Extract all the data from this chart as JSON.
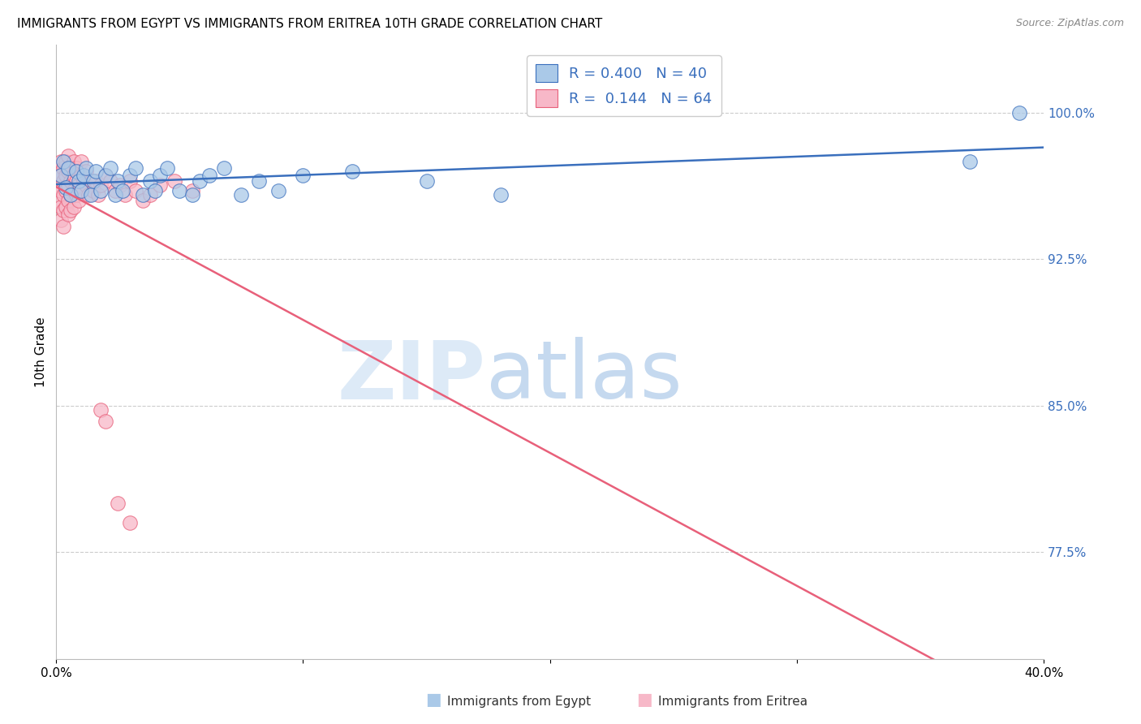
{
  "title": "IMMIGRANTS FROM EGYPT VS IMMIGRANTS FROM ERITREA 10TH GRADE CORRELATION CHART",
  "source": "Source: ZipAtlas.com",
  "ylabel": "10th Grade",
  "yticks": [
    "77.5%",
    "85.0%",
    "92.5%",
    "100.0%"
  ],
  "ytick_values": [
    0.775,
    0.85,
    0.925,
    1.0
  ],
  "xlim": [
    0.0,
    0.4
  ],
  "ylim": [
    0.72,
    1.035
  ],
  "r_egypt": 0.4,
  "n_egypt": 40,
  "r_eritrea": 0.144,
  "n_eritrea": 64,
  "egypt_color": "#aac9e8",
  "eritrea_color": "#f7b8c8",
  "trendline_egypt_color": "#3a6fbd",
  "trendline_eritrea_color": "#e8607a",
  "egypt_scatter_x": [
    0.002,
    0.003,
    0.004,
    0.005,
    0.006,
    0.008,
    0.009,
    0.01,
    0.011,
    0.012,
    0.014,
    0.015,
    0.016,
    0.018,
    0.02,
    0.022,
    0.024,
    0.025,
    0.027,
    0.03,
    0.032,
    0.035,
    0.038,
    0.04,
    0.042,
    0.045,
    0.05,
    0.055,
    0.058,
    0.062,
    0.068,
    0.075,
    0.082,
    0.09,
    0.1,
    0.12,
    0.15,
    0.18,
    0.37,
    0.39
  ],
  "egypt_scatter_y": [
    0.968,
    0.975,
    0.962,
    0.972,
    0.958,
    0.97,
    0.965,
    0.96,
    0.968,
    0.972,
    0.958,
    0.965,
    0.97,
    0.96,
    0.968,
    0.972,
    0.958,
    0.965,
    0.96,
    0.968,
    0.972,
    0.958,
    0.965,
    0.96,
    0.968,
    0.972,
    0.96,
    0.958,
    0.965,
    0.968,
    0.972,
    0.958,
    0.965,
    0.96,
    0.968,
    0.97,
    0.965,
    0.958,
    0.975,
    1.0
  ],
  "eritrea_scatter_x": [
    0.001,
    0.001,
    0.001,
    0.002,
    0.002,
    0.002,
    0.002,
    0.002,
    0.003,
    0.003,
    0.003,
    0.003,
    0.003,
    0.004,
    0.004,
    0.004,
    0.004,
    0.005,
    0.005,
    0.005,
    0.005,
    0.005,
    0.006,
    0.006,
    0.006,
    0.006,
    0.007,
    0.007,
    0.007,
    0.007,
    0.008,
    0.008,
    0.008,
    0.009,
    0.009,
    0.009,
    0.01,
    0.01,
    0.01,
    0.011,
    0.012,
    0.012,
    0.013,
    0.014,
    0.015,
    0.016,
    0.017,
    0.018,
    0.02,
    0.022,
    0.024,
    0.026,
    0.028,
    0.03,
    0.032,
    0.035,
    0.038,
    0.042,
    0.048,
    0.055,
    0.018,
    0.02,
    0.025,
    0.03
  ],
  "eritrea_scatter_y": [
    0.97,
    0.962,
    0.955,
    0.975,
    0.968,
    0.96,
    0.952,
    0.945,
    0.972,
    0.965,
    0.958,
    0.95,
    0.942,
    0.975,
    0.968,
    0.96,
    0.952,
    0.978,
    0.97,
    0.963,
    0.955,
    0.948,
    0.972,
    0.965,
    0.958,
    0.95,
    0.975,
    0.968,
    0.96,
    0.952,
    0.972,
    0.965,
    0.958,
    0.97,
    0.963,
    0.955,
    0.975,
    0.968,
    0.96,
    0.965,
    0.97,
    0.963,
    0.958,
    0.965,
    0.96,
    0.965,
    0.958,
    0.963,
    0.968,
    0.965,
    0.96,
    0.963,
    0.958,
    0.965,
    0.96,
    0.955,
    0.958,
    0.963,
    0.965,
    0.96,
    0.848,
    0.842,
    0.8,
    0.79
  ]
}
